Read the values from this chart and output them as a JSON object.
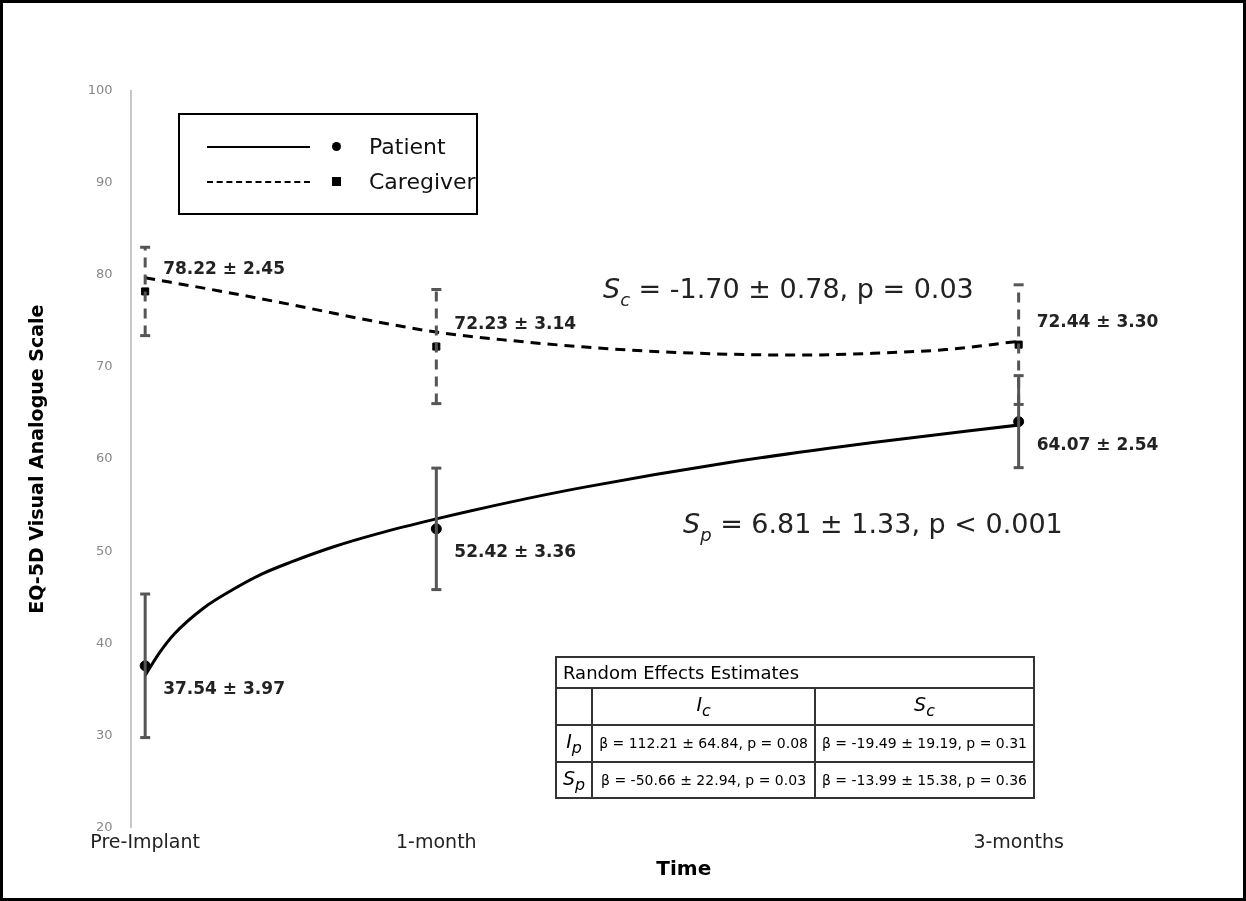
{
  "chart_data": {
    "type": "line",
    "xlabel": "Time",
    "ylabel": "EQ-5D Visual Analogue Scale",
    "xlim": [
      -0.05,
      3.75
    ],
    "xticks": [
      {
        "value": 0,
        "label": "Pre-Implant"
      },
      {
        "value": 1,
        "label": "1-month"
      },
      {
        "value": 3,
        "label": "3-months"
      }
    ],
    "ylim": [
      20,
      100
    ],
    "yticks": [
      20,
      30,
      40,
      50,
      60,
      70,
      80,
      90,
      100
    ],
    "grid": false,
    "legend": "top left",
    "series": [
      {
        "name": "Patient",
        "color": "#000000",
        "line_style": "solid",
        "marker": "none",
        "x": [
          0,
          0.05,
          0.1,
          0.2,
          0.3,
          0.4,
          0.5,
          0.65,
          0.8,
          1,
          1.25,
          1.5,
          2,
          2.5,
          3
        ],
        "values": [
          36.5,
          39,
          41,
          43.8,
          45.8,
          47.5,
          48.8,
          50.5,
          51.9,
          53.5,
          55.3,
          56.9,
          59.6,
          61.8,
          63.7
        ]
      },
      {
        "name": "Caregiver",
        "color": "#000000",
        "line_style": "dashed",
        "marker": "none",
        "x": [
          0,
          0.25,
          0.5,
          0.75,
          1,
          1.25,
          1.5,
          1.75,
          2,
          2.25,
          2.5,
          2.75,
          3
        ],
        "values": [
          79.7,
          78.3,
          76.8,
          75.2,
          73.8,
          72.9,
          72.2,
          71.7,
          71.4,
          71.3,
          71.5,
          71.9,
          72.8
        ]
      },
      {
        "type": "scatter",
        "color": "#000000",
        "marker": "circle",
        "x": [
          0,
          1,
          3
        ],
        "values": [
          37.54,
          52.42,
          64.07
        ],
        "errors": [
          7.8,
          6.6,
          5.0
        ],
        "value_labels": [
          "37.54 ± 3.97",
          "52.42 ± 3.36",
          "64.07 ± 2.54"
        ]
      },
      {
        "type": "scatter",
        "color": "#000000",
        "marker": "square",
        "line_style": "dashed",
        "x": [
          0,
          1,
          3
        ],
        "values": [
          78.22,
          72.23,
          72.44
        ],
        "errors": [
          4.8,
          6.2,
          6.5
        ],
        "value_labels": [
          "78.22 ± 2.45",
          "72.23 ± 3.14",
          "72.44 ± 3.30"
        ]
      }
    ],
    "annotations": [
      "S$_{c}$ = -1.70 ± 0.78, p = 0.03",
      "S$_{p}$ = 6.81 ± 1.33, p < 0.001",
      "Random Effects Estimates",
      "I$_{c}$",
      "S$_{c}$",
      "I$_{p}$",
      "β = 112.21 ± 64.84, p = 0.08",
      "β = -19.49 ± 19.19, p = 0.31",
      "S$_{p}$",
      "β = -50.66 ± 22.94, p = 0.03",
      "β = -13.99 ± 15.38, p = 0.36"
    ]
  }
}
